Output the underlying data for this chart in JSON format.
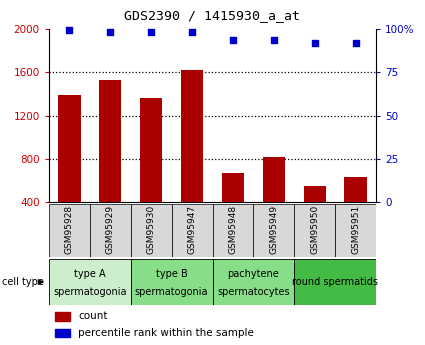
{
  "title": "GDS2390 / 1415930_a_at",
  "samples": [
    "GSM95928",
    "GSM95929",
    "GSM95930",
    "GSM95947",
    "GSM95948",
    "GSM95949",
    "GSM95950",
    "GSM95951"
  ],
  "counts": [
    1390,
    1530,
    1360,
    1620,
    665,
    820,
    545,
    630
  ],
  "percentile_ranks": [
    99.5,
    98.5,
    98.5,
    98.5,
    94,
    94,
    92,
    92
  ],
  "ylim_left": [
    400,
    2000
  ],
  "ylim_right": [
    0,
    100
  ],
  "yticks_left": [
    400,
    800,
    1200,
    1600,
    2000
  ],
  "yticks_right": [
    0,
    25,
    50,
    75,
    100
  ],
  "bar_color": "#aa0000",
  "dot_color": "#0000cc",
  "bar_bottom": 400,
  "group_info": [
    {
      "label_top": "type A",
      "label_bot": "spermatogonia",
      "start": 0,
      "end": 1,
      "color": "#cceecc"
    },
    {
      "label_top": "type B",
      "label_bot": "spermatogonia",
      "start": 2,
      "end": 3,
      "color": "#88dd88"
    },
    {
      "label_top": "pachytene",
      "label_bot": "spermatocytes",
      "start": 4,
      "end": 5,
      "color": "#88dd88"
    },
    {
      "label_top": "round spermatids",
      "label_bot": "",
      "start": 6,
      "end": 7,
      "color": "#44bb44"
    }
  ],
  "bar_bg_color": "#d8d8d8",
  "plot_bg_color": "#ffffff",
  "ylabel_left_color": "#cc0000",
  "ylabel_right_color": "#0000cc",
  "legend_count_color": "#aa0000",
  "legend_pct_color": "#0000cc",
  "title_fontsize": 9.5,
  "tick_fontsize": 7.5,
  "sample_fontsize": 6.5,
  "celltype_fontsize": 7,
  "legend_fontsize": 7.5
}
